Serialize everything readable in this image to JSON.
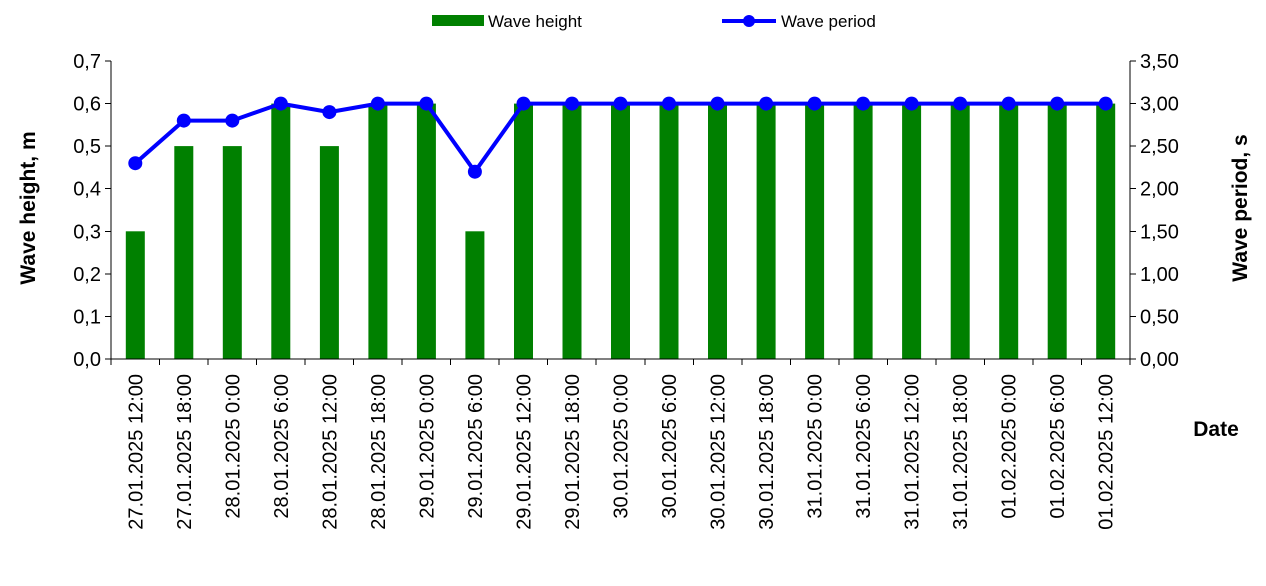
{
  "chart_data": {
    "type": "bar+line",
    "xlabel": "Date",
    "ylabel_left": "Wave height, m",
    "ylabel_right": "Wave period, s",
    "ylim_left": [
      0,
      0.7
    ],
    "ylim_right": [
      0,
      3.5
    ],
    "yticks_left": [
      "0,0",
      "0,1",
      "0,2",
      "0,3",
      "0,4",
      "0,5",
      "0,6",
      "0,7"
    ],
    "yticks_right": [
      "0,00",
      "0,50",
      "1,00",
      "1,50",
      "2,00",
      "2,50",
      "3,00",
      "3,50"
    ],
    "categories": [
      "27.01.2025 12:00",
      "27.01.2025 18:00",
      "28.01.2025 0:00",
      "28.01.2025 6:00",
      "28.01.2025 12:00",
      "28.01.2025 18:00",
      "29.01.2025 0:00",
      "29.01.2025 6:00",
      "29.01.2025 12:00",
      "29.01.2025 18:00",
      "30.01.2025 0:00",
      "30.01.2025 6:00",
      "30.01.2025 12:00",
      "30.01.2025 18:00",
      "31.01.2025 0:00",
      "31.01.2025 6:00",
      "31.01.2025 12:00",
      "31.01.2025 18:00",
      "01.02.2025 0:00",
      "01.02.2025 6:00",
      "01.02.2025 12:00"
    ],
    "series": [
      {
        "name": "Wave height",
        "type": "bar",
        "axis": "left",
        "color": "#008000",
        "values": [
          0.3,
          0.5,
          0.5,
          0.6,
          0.5,
          0.6,
          0.6,
          0.3,
          0.6,
          0.6,
          0.6,
          0.6,
          0.6,
          0.6,
          0.6,
          0.6,
          0.6,
          0.6,
          0.6,
          0.6,
          0.6
        ]
      },
      {
        "name": "Wave period",
        "type": "line",
        "axis": "right",
        "color": "#0000FF",
        "values": [
          2.3,
          2.8,
          2.8,
          3.0,
          2.9,
          3.0,
          3.0,
          2.2,
          3.0,
          3.0,
          3.0,
          3.0,
          3.0,
          3.0,
          3.0,
          3.0,
          3.0,
          3.0,
          3.0,
          3.0,
          3.0
        ]
      }
    ],
    "legend_position": "top-center",
    "grid": false
  }
}
